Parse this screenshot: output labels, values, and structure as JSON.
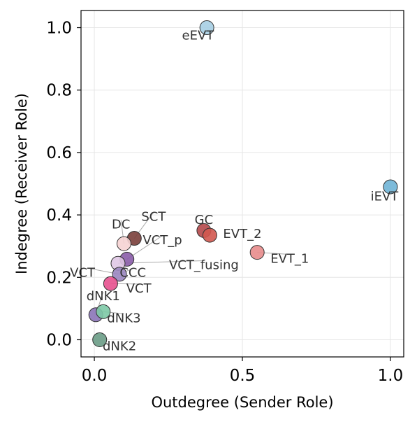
{
  "chart_data": {
    "type": "scatter",
    "title": "",
    "xlabel": "Outdegree (Sender Role)",
    "ylabel": "Indegree (Receiver Role)",
    "xlim": [
      -0.045,
      1.045
    ],
    "ylim": [
      -0.055,
      1.055
    ],
    "xticks": [
      0.0,
      0.5,
      1.0
    ],
    "xtick_labels": [
      "0.0",
      "0.5",
      "1.0"
    ],
    "yticks": [
      0.0,
      0.2,
      0.4,
      0.6,
      0.8,
      1.0
    ],
    "ytick_labels": [
      "0.0",
      "0.2",
      "0.4",
      "0.6",
      "0.8",
      "1.0"
    ],
    "grid": true,
    "legend": "none",
    "points": [
      {
        "label": "eEVT",
        "x": 0.38,
        "y": 1.0,
        "color": "#a6cee3"
      },
      {
        "label": "iEVT",
        "x": 1.0,
        "y": 0.49,
        "color": "#6fb4d6"
      },
      {
        "label": "GC",
        "x": 0.37,
        "y": 0.35,
        "color": "#b5484a"
      },
      {
        "label": "EVT_2",
        "x": 0.39,
        "y": 0.335,
        "color": "#d2584f"
      },
      {
        "label": "EVT_1",
        "x": 0.55,
        "y": 0.28,
        "color": "#e88c8c"
      },
      {
        "label": "SCT",
        "x": 0.135,
        "y": 0.325,
        "color": "#7a3f3b"
      },
      {
        "label": "DC",
        "x": 0.1,
        "y": 0.308,
        "color": "#f6d3d3"
      },
      {
        "label": "VCT_p",
        "x": 0.11,
        "y": 0.258,
        "color": "#8a5ca8"
      },
      {
        "label": "VCT_fusing",
        "x": 0.08,
        "y": 0.245,
        "color": "#e0c8e6"
      },
      {
        "label": "VCT_CCC",
        "x": 0.085,
        "y": 0.21,
        "color": "#9a86c0"
      },
      {
        "label": "VCT",
        "x": 0.055,
        "y": 0.18,
        "color": "#e7508e"
      },
      {
        "label": "dNK1",
        "x": 0.005,
        "y": 0.08,
        "color": "#8b74b8"
      },
      {
        "label": "dNK3",
        "x": 0.03,
        "y": 0.09,
        "color": "#7dc9a6"
      },
      {
        "label": "dNK2",
        "x": 0.018,
        "y": 0.0,
        "color": "#6a9c86"
      }
    ],
    "annotations": [
      {
        "text": "eEVT",
        "x": 0.35,
        "y": 0.975
      },
      {
        "text": "iEVT",
        "x": 0.98,
        "y": 0.46
      },
      {
        "text": "GC",
        "x": 0.37,
        "y": 0.385
      },
      {
        "text": "EVT_2",
        "x": 0.5,
        "y": 0.34
      },
      {
        "text": "EVT_1",
        "x": 0.66,
        "y": 0.26
      },
      {
        "text": "SCT",
        "x": 0.2,
        "y": 0.395
      },
      {
        "text": "DC",
        "x": 0.09,
        "y": 0.37
      },
      {
        "text": "VCT_p",
        "x": 0.23,
        "y": 0.32
      },
      {
        "text": "VCT_fusing",
        "x": 0.37,
        "y": 0.24
      },
      {
        "text": "VCT",
        "x": -0.04,
        "y": 0.215
      },
      {
        "text": "CCC",
        "x": 0.13,
        "y": 0.215
      },
      {
        "text": "VCT",
        "x": 0.15,
        "y": 0.165
      },
      {
        "text": "dNK1",
        "x": 0.03,
        "y": 0.14
      },
      {
        "text": "dNK3",
        "x": 0.1,
        "y": 0.07
      },
      {
        "text": "dNK2",
        "x": 0.085,
        "y": -0.02
      }
    ]
  }
}
